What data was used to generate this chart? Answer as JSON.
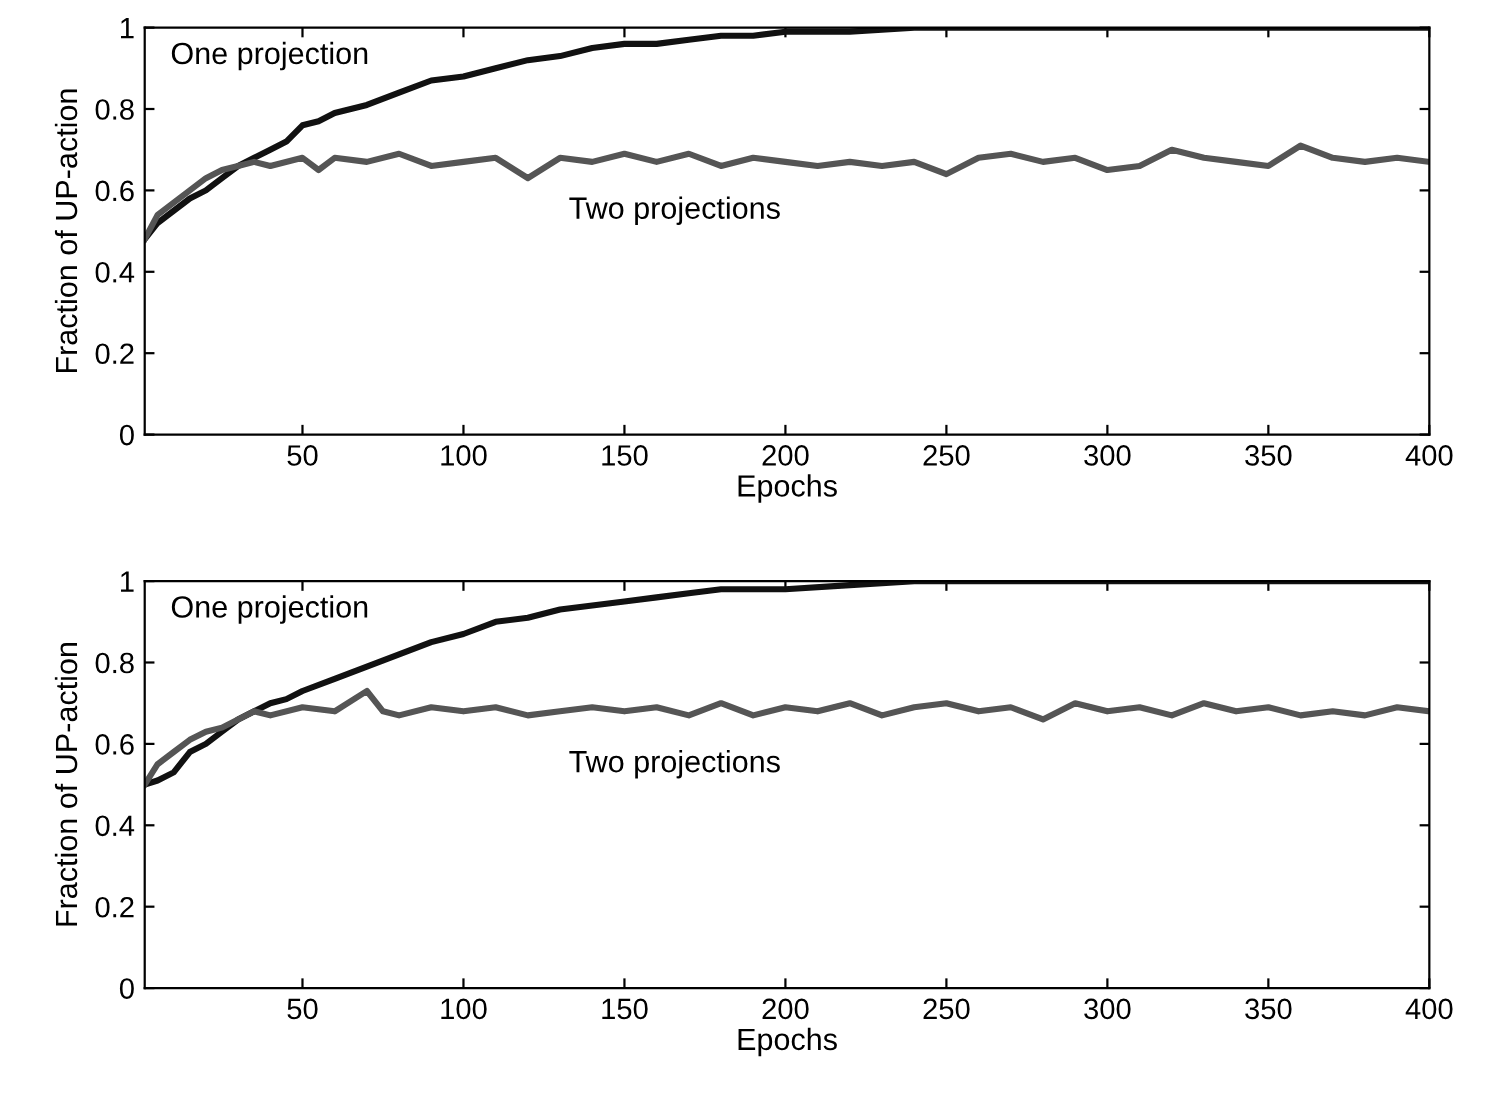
{
  "chart_data": [
    {
      "type": "line",
      "xlabel": "Epochs",
      "ylabel": "Fraction of UP-action",
      "xlim": [
        1,
        400
      ],
      "xticks": [
        50,
        100,
        150,
        200,
        250,
        300,
        350,
        400
      ],
      "ylim": [
        0,
        1
      ],
      "yticks": [
        0,
        0.2,
        0.4,
        0.6,
        0.8,
        1
      ],
      "grid": false,
      "legend": false,
      "marker": "none",
      "line_style": "solid",
      "series": [
        {
          "name": "One projection",
          "color": "#111111",
          "x": [
            1,
            5,
            10,
            15,
            20,
            25,
            30,
            35,
            40,
            45,
            50,
            55,
            60,
            70,
            80,
            90,
            100,
            110,
            120,
            130,
            140,
            150,
            160,
            170,
            180,
            190,
            200,
            220,
            240,
            260,
            280,
            300,
            320,
            340,
            360,
            380,
            400
          ],
          "values": [
            0.48,
            0.52,
            0.55,
            0.58,
            0.6,
            0.63,
            0.66,
            0.68,
            0.7,
            0.72,
            0.76,
            0.77,
            0.79,
            0.81,
            0.84,
            0.87,
            0.88,
            0.9,
            0.92,
            0.93,
            0.95,
            0.96,
            0.96,
            0.97,
            0.98,
            0.98,
            0.99,
            0.99,
            1.0,
            1.0,
            1.0,
            1.0,
            1.0,
            1.0,
            1.0,
            1.0,
            1.0
          ]
        },
        {
          "name": "Two projections",
          "color": "#555555",
          "x": [
            1,
            5,
            10,
            15,
            20,
            25,
            30,
            35,
            40,
            50,
            55,
            60,
            70,
            80,
            90,
            100,
            110,
            120,
            130,
            140,
            150,
            160,
            170,
            180,
            190,
            200,
            210,
            220,
            230,
            240,
            250,
            260,
            270,
            280,
            290,
            300,
            310,
            320,
            330,
            340,
            350,
            360,
            370,
            380,
            390,
            400
          ],
          "values": [
            0.48,
            0.54,
            0.57,
            0.6,
            0.63,
            0.65,
            0.66,
            0.67,
            0.66,
            0.68,
            0.65,
            0.68,
            0.67,
            0.69,
            0.66,
            0.67,
            0.68,
            0.63,
            0.68,
            0.67,
            0.69,
            0.67,
            0.69,
            0.66,
            0.68,
            0.67,
            0.66,
            0.67,
            0.66,
            0.67,
            0.64,
            0.68,
            0.69,
            0.67,
            0.68,
            0.65,
            0.66,
            0.7,
            0.68,
            0.67,
            0.66,
            0.71,
            0.68,
            0.67,
            0.68,
            0.67
          ]
        }
      ]
    },
    {
      "type": "line",
      "xlabel": "Epochs",
      "ylabel": "Fraction of UP-action",
      "xlim": [
        1,
        400
      ],
      "xticks": [
        50,
        100,
        150,
        200,
        250,
        300,
        350,
        400
      ],
      "ylim": [
        0,
        1
      ],
      "yticks": [
        0,
        0.2,
        0.4,
        0.6,
        0.8,
        1
      ],
      "grid": false,
      "legend": false,
      "marker": "none",
      "line_style": "solid",
      "series": [
        {
          "name": "One projection",
          "color": "#111111",
          "x": [
            1,
            5,
            10,
            15,
            20,
            25,
            30,
            35,
            40,
            45,
            50,
            60,
            70,
            80,
            90,
            100,
            110,
            120,
            130,
            140,
            150,
            160,
            170,
            180,
            200,
            220,
            240,
            260,
            280,
            300,
            320,
            340,
            360,
            380,
            400
          ],
          "values": [
            0.5,
            0.51,
            0.53,
            0.58,
            0.6,
            0.63,
            0.66,
            0.68,
            0.7,
            0.71,
            0.73,
            0.76,
            0.79,
            0.82,
            0.85,
            0.87,
            0.9,
            0.91,
            0.93,
            0.94,
            0.95,
            0.96,
            0.97,
            0.98,
            0.98,
            0.99,
            1.0,
            1.0,
            1.0,
            1.0,
            1.0,
            1.0,
            1.0,
            1.0,
            1.0
          ]
        },
        {
          "name": "Two projections",
          "color": "#555555",
          "x": [
            1,
            5,
            10,
            15,
            20,
            25,
            30,
            35,
            40,
            50,
            60,
            70,
            75,
            80,
            90,
            100,
            110,
            120,
            130,
            140,
            150,
            160,
            170,
            180,
            190,
            200,
            210,
            220,
            230,
            240,
            250,
            260,
            270,
            280,
            290,
            300,
            310,
            320,
            330,
            340,
            350,
            360,
            370,
            380,
            390,
            400
          ],
          "values": [
            0.5,
            0.55,
            0.58,
            0.61,
            0.63,
            0.64,
            0.66,
            0.68,
            0.67,
            0.69,
            0.68,
            0.73,
            0.68,
            0.67,
            0.69,
            0.68,
            0.69,
            0.67,
            0.68,
            0.69,
            0.68,
            0.69,
            0.67,
            0.7,
            0.67,
            0.69,
            0.68,
            0.7,
            0.67,
            0.69,
            0.7,
            0.68,
            0.69,
            0.66,
            0.7,
            0.68,
            0.69,
            0.67,
            0.7,
            0.68,
            0.69,
            0.67,
            0.68,
            0.67,
            0.69,
            0.68
          ]
        }
      ]
    }
  ]
}
